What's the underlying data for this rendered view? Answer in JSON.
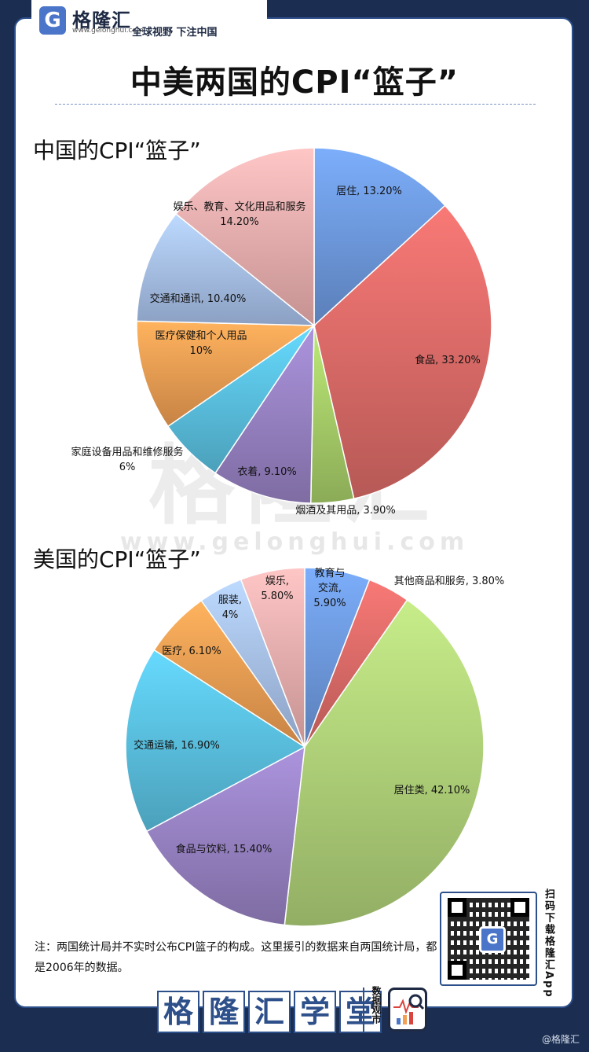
{
  "header": {
    "brand": "格隆汇",
    "brand_url": "www.gelonghui.com",
    "slogan": "全球视野 下注中国",
    "title": "中美两国的CPI“篮子”"
  },
  "watermark": {
    "text": "格隆汇",
    "url": "www.gelonghui.com"
  },
  "chart_data": [
    {
      "type": "pie",
      "title": "中国的CPI“篮子”",
      "slices": [
        {
          "label": "居住",
          "value": 13.2,
          "value_label": "13.20%",
          "color": "#6f9be0"
        },
        {
          "label": "食品",
          "value": 33.2,
          "value_label": "33.20%",
          "color": "#de6c69"
        },
        {
          "label": "烟酒及其用品",
          "value": 3.9,
          "value_label": "3.90%",
          "color": "#a9d16a"
        },
        {
          "label": "衣着",
          "value": 9.1,
          "value_label": "9.10%",
          "color": "#9a84c6"
        },
        {
          "label": "家庭设备用品和维修服务",
          "value": 6,
          "value_label": "6%",
          "color": "#5bc3e3"
        },
        {
          "label": "医疗保健和个人用品",
          "value": 10,
          "value_label": "10%",
          "color": "#f3a054"
        },
        {
          "label": "交通和通讯",
          "value": 10.4,
          "value_label": "10.40%",
          "color": "#a9c3ee"
        },
        {
          "label": "娱乐、教育、文化用品和服务",
          "value": 14.2,
          "value_label": "14.20%",
          "color": "#f0b1b1"
        }
      ]
    },
    {
      "type": "pie",
      "title": "美国的CPI“篮子”",
      "slices": [
        {
          "label": "教育与交流",
          "value": 5.9,
          "value_label": "5.90%",
          "color": "#6f9be0"
        },
        {
          "label": "其他商品和服务",
          "value": 3.8,
          "value_label": "3.80%",
          "color": "#de6c69"
        },
        {
          "label": "居住类",
          "value": 42.1,
          "value_label": "42.10%",
          "color": "#b2d47a"
        },
        {
          "label": "食品与饮料",
          "value": 15.4,
          "value_label": "15.40%",
          "color": "#9a84c6"
        },
        {
          "label": "交通运输",
          "value": 16.9,
          "value_label": "16.90%",
          "color": "#5bc3e3"
        },
        {
          "label": "医疗",
          "value": 6.1,
          "value_label": "6.10%",
          "color": "#f3a054"
        },
        {
          "label": "服装",
          "value": 4,
          "value_label": "4%",
          "color": "#a9c3ee"
        },
        {
          "label": "娱乐",
          "value": 5.8,
          "value_label": "5.80%",
          "color": "#f0b1b1"
        }
      ]
    }
  ],
  "note": "注：两国统计局并不实时公布CPI篮子的构成。这里援引的数据来自两国统计局，都是2006年的数据。",
  "qr": {
    "caption": "扫码下载格隆汇App",
    "center_letter": "G"
  },
  "footer": {
    "chars": [
      "格",
      "隆",
      "汇",
      "学",
      "堂"
    ],
    "sub": "数据观市",
    "credit": "@格隆汇"
  }
}
